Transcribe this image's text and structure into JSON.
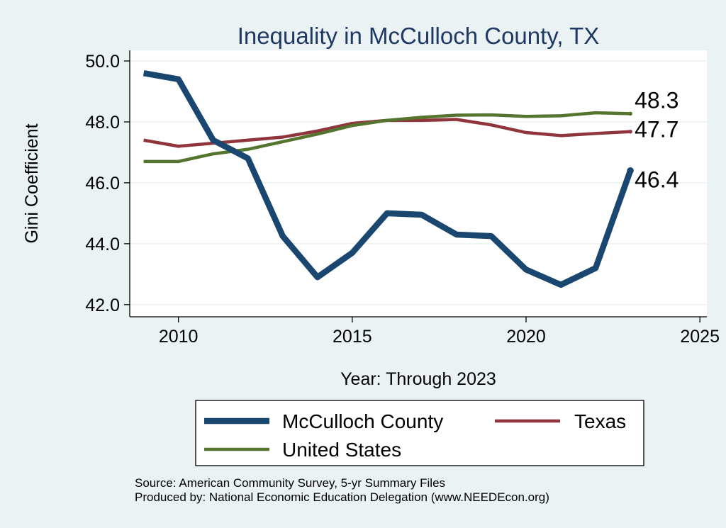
{
  "chart_data": {
    "type": "line",
    "title": "Inequality in McCulloch County, TX",
    "xlabel": "Year: Through 2023",
    "ylabel": "Gini Coefficient",
    "xlim": [
      2008.6,
      2025.2
    ],
    "ylim": [
      41.6,
      50.35
    ],
    "xticks": [
      2010,
      2015,
      2020,
      2025
    ],
    "xtick_labels": [
      "2010",
      "2015",
      "2020",
      "2025"
    ],
    "yticks": [
      42,
      44,
      46,
      48,
      50
    ],
    "ytick_labels": [
      "42.0",
      "44.0",
      "46.0",
      "48.0",
      "50.0"
    ],
    "grid": true,
    "x": [
      2009,
      2010,
      2011,
      2012,
      2013,
      2014,
      2015,
      2016,
      2017,
      2018,
      2019,
      2020,
      2021,
      2022,
      2023
    ],
    "series": [
      {
        "name": "McCulloch County",
        "color": "#1a476f",
        "values": [
          49.6,
          49.4,
          47.4,
          46.8,
          44.25,
          42.9,
          43.7,
          45.0,
          44.95,
          44.3,
          44.25,
          43.15,
          42.65,
          43.2,
          46.4
        ],
        "end_label": "46.4"
      },
      {
        "name": "Texas",
        "color": "#90353b",
        "values": [
          47.4,
          47.2,
          47.3,
          47.4,
          47.5,
          47.7,
          47.95,
          48.05,
          48.05,
          48.08,
          47.9,
          47.65,
          47.55,
          47.62,
          47.68
        ],
        "end_label": "47.7"
      },
      {
        "name": "United States",
        "color": "#55752f",
        "values": [
          46.7,
          46.7,
          46.95,
          47.1,
          47.35,
          47.6,
          47.88,
          48.05,
          48.15,
          48.22,
          48.23,
          48.18,
          48.2,
          48.3,
          48.27
        ],
        "end_label": "48.3"
      }
    ],
    "legend": {
      "placement": "bottom",
      "entries": [
        "McCulloch County",
        "Texas",
        "United States"
      ]
    }
  },
  "source": {
    "line1": "Source: American Community Survey, 5-yr Summary Files",
    "line2": "Produced by: National Economic Education Delegation (www.NEEDEcon.org)"
  }
}
